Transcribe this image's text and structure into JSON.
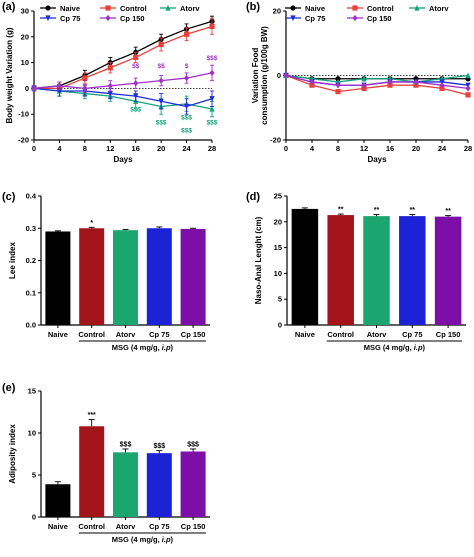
{
  "colors": {
    "naive": "#000000",
    "control": "#e8403a",
    "atorv": "#16a37b",
    "cp75": "#1f2fd6",
    "cp150": "#a132c9",
    "bar_naive": "#000000",
    "bar_control": "#a3131a",
    "bar_atorv": "#1aa66e",
    "bar_cp75": "#1c22d6",
    "bar_cp150": "#7d0fa8"
  },
  "chart_data": [
    {
      "id": "a",
      "panel_label": "(a)",
      "type": "line",
      "xlabel": "Days",
      "ylabel": "Body weight Variation (g)",
      "x": [
        0,
        4,
        8,
        12,
        16,
        20,
        24,
        28
      ],
      "xticks": [
        "0",
        "4",
        "8",
        "12",
        "16",
        "20",
        "24",
        "28"
      ],
      "ylim": [
        -20,
        30
      ],
      "yticks": [
        "-20",
        "-10",
        "0",
        "10",
        "20",
        "30"
      ],
      "legend_position": "top",
      "series": [
        {
          "name": "Naive",
          "color_key": "naive",
          "marker": "circle",
          "values": [
            0,
            1,
            5,
            10,
            14,
            19,
            23,
            26
          ],
          "err": [
            1,
            1.5,
            2,
            2,
            2,
            2,
            2,
            2
          ]
        },
        {
          "name": "Control",
          "color_key": "control",
          "marker": "square",
          "values": [
            0,
            0,
            4,
            8,
            12,
            17,
            21,
            24
          ],
          "err": [
            1,
            1.5,
            2,
            2,
            2,
            2.5,
            2.5,
            3
          ]
        },
        {
          "name": "Atorv",
          "color_key": "atorv",
          "marker": "triangle",
          "values": [
            0,
            -1,
            -2,
            -3,
            -5,
            -7,
            -6,
            -8
          ],
          "err": [
            1,
            2,
            2,
            2,
            3,
            3,
            3,
            3
          ]
        },
        {
          "name": "Cp 75",
          "color_key": "cp75",
          "marker": "triangle-down",
          "values": [
            0,
            -1,
            -1,
            -2,
            -3,
            -5,
            -7,
            -4
          ],
          "err": [
            1,
            2,
            2,
            2,
            2,
            3,
            3,
            3
          ]
        },
        {
          "name": "Cp 150",
          "color_key": "cp150",
          "marker": "diamond",
          "values": [
            0,
            1,
            0,
            1,
            2,
            3,
            4,
            6
          ],
          "err": [
            1,
            1.5,
            1.5,
            2,
            2,
            2,
            2,
            3
          ]
        }
      ],
      "annotations": [
        {
          "x": 16,
          "y": 8,
          "text": "$$"
        },
        {
          "x": 20,
          "y": 8,
          "text": "$$"
        },
        {
          "x": 24,
          "y": 8,
          "text": "$"
        },
        {
          "x": 28,
          "y": 11,
          "text": "$$$"
        },
        {
          "x": 16,
          "y": -9,
          "text": "$$$"
        },
        {
          "x": 20,
          "y": -14,
          "text": "$$$"
        },
        {
          "x": 24,
          "y": -12,
          "text": "$$$"
        },
        {
          "x": 24,
          "y": -17,
          "text": "$$$"
        },
        {
          "x": 28,
          "y": -14,
          "text": "$$$"
        }
      ]
    },
    {
      "id": "b",
      "panel_label": "(b)",
      "type": "line",
      "xlabel": "Days",
      "ylabel_lines": [
        "Variation Food",
        "consumption (g/100g BW)"
      ],
      "x": [
        0,
        4,
        8,
        12,
        16,
        20,
        24,
        28
      ],
      "xticks": [
        "0",
        "4",
        "8",
        "12",
        "16",
        "20",
        "24",
        "28"
      ],
      "ylim": [
        -20,
        20
      ],
      "yticks": [
        "-20",
        "0",
        "20"
      ],
      "series": [
        {
          "name": "Naive",
          "color_key": "naive",
          "marker": "circle",
          "values": [
            0,
            -1,
            -1,
            -1,
            -1,
            -1,
            -1,
            -1
          ]
        },
        {
          "name": "Control",
          "color_key": "control",
          "marker": "square",
          "values": [
            0,
            -3,
            -5,
            -4,
            -3,
            -3,
            -4,
            -6
          ]
        },
        {
          "name": "Atorv",
          "color_key": "atorv",
          "marker": "triangle",
          "values": [
            0,
            -1,
            -2,
            -1,
            -1,
            -2,
            -1,
            0
          ]
        },
        {
          "name": "Cp 75",
          "color_key": "cp75",
          "marker": "triangle-down",
          "values": [
            0,
            -2,
            -3,
            -3,
            -2,
            -2,
            -2,
            -3
          ]
        },
        {
          "name": "Cp 150",
          "color_key": "cp150",
          "marker": "diamond",
          "values": [
            0,
            -2,
            -3,
            -3,
            -2,
            -2,
            -3,
            -4
          ]
        }
      ]
    },
    {
      "id": "c",
      "panel_label": "(c)",
      "type": "bar",
      "ylabel": "Lee index",
      "categories": [
        "Naive",
        "Control",
        "Atorv",
        "Cp 75",
        "Cp 150"
      ],
      "values": [
        0.29,
        0.3,
        0.294,
        0.3,
        0.298
      ],
      "err": [
        0.002,
        0.003,
        0.002,
        0.004,
        0.002
      ],
      "bar_color_keys": [
        "bar_naive",
        "bar_control",
        "bar_atorv",
        "bar_cp75",
        "bar_cp150"
      ],
      "ylim": [
        0,
        0.4
      ],
      "yticks": [
        "0.0",
        "0.1",
        "0.2",
        "0.3",
        "0.4"
      ],
      "sig_labels": [
        "",
        "*",
        "",
        "",
        ""
      ],
      "group_label": "MSG (4 mg/g, ",
      "group_label_italic": "i.p",
      "group_label_end": ")"
    },
    {
      "id": "d",
      "panel_label": "(d)",
      "type": "bar",
      "ylabel": "Naso-Anal Lenght (cm)",
      "categories": [
        "Naive",
        "Control",
        "Atorv",
        "Cp 75",
        "Cp 150"
      ],
      "values": [
        22.5,
        21.3,
        21.1,
        21.1,
        21.0
      ],
      "err": [
        0.2,
        0.2,
        0.3,
        0.3,
        0.2
      ],
      "bar_color_keys": [
        "bar_naive",
        "bar_control",
        "bar_atorv",
        "bar_cp75",
        "bar_cp150"
      ],
      "ylim": [
        0,
        25
      ],
      "yticks": [
        "0",
        "5",
        "10",
        "15",
        "20",
        "25"
      ],
      "sig_labels": [
        "",
        "**",
        "**",
        "**",
        "**"
      ],
      "group_label": "MSG (4 mg/g, ",
      "group_label_italic": "i.p",
      "group_label_end": ")"
    },
    {
      "id": "e",
      "panel_label": "(e)",
      "type": "bar",
      "ylabel": "Adiposity index",
      "categories": [
        "Naive",
        "Control",
        "Atorv",
        "Cp 75",
        "Cp 150"
      ],
      "values": [
        3.9,
        10.8,
        7.7,
        7.6,
        7.8
      ],
      "err": [
        0.3,
        0.8,
        0.4,
        0.3,
        0.3
      ],
      "bar_color_keys": [
        "bar_naive",
        "bar_control",
        "bar_atorv",
        "bar_cp75",
        "bar_cp150"
      ],
      "ylim": [
        0,
        15
      ],
      "yticks": [
        "0",
        "5",
        "10",
        "15"
      ],
      "sig_labels": [
        "",
        "***",
        "$$$",
        "$$$",
        "$$$"
      ],
      "group_label": "MSG (4 mg/g, ",
      "group_label_italic": "i.p",
      "group_label_end": ")"
    }
  ]
}
